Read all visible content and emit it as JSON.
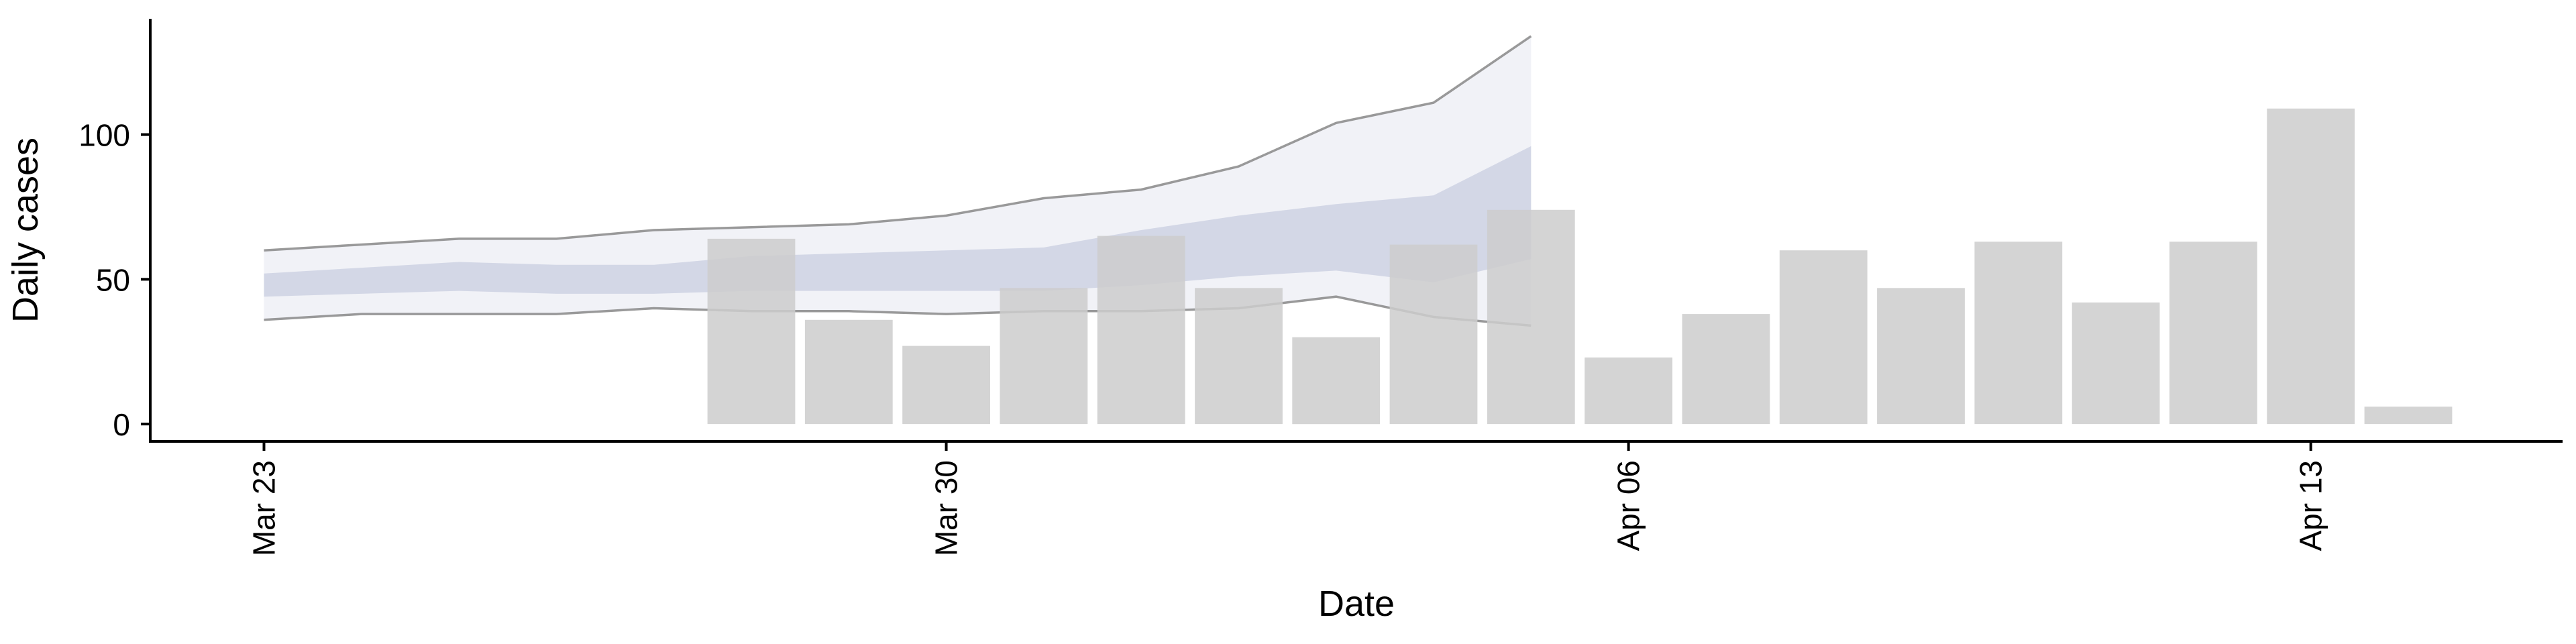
{
  "chart_data": {
    "type": "bar",
    "title": "",
    "xlabel": "Date",
    "ylabel": "Daily cases",
    "ylim": [
      -6,
      140
    ],
    "yticks": [
      0,
      50,
      100
    ],
    "xticks": [
      {
        "date": "2020-03-23",
        "label": "Mar 23"
      },
      {
        "date": "2020-03-30",
        "label": "Mar 30"
      },
      {
        "date": "2020-04-06",
        "label": "Apr 06"
      },
      {
        "date": "2020-04-13",
        "label": "Apr 13"
      }
    ],
    "xlim": [
      "2020-03-21T20:00",
      "2020-04-15T14:00"
    ],
    "grid": false,
    "bars": {
      "color": "#cccccc",
      "points": [
        {
          "date": "2020-03-28",
          "value": 64
        },
        {
          "date": "2020-03-29",
          "value": 36
        },
        {
          "date": "2020-03-30",
          "value": 27
        },
        {
          "date": "2020-03-31",
          "value": 47
        },
        {
          "date": "2020-04-01",
          "value": 65
        },
        {
          "date": "2020-04-02",
          "value": 47
        },
        {
          "date": "2020-04-03",
          "value": 30
        },
        {
          "date": "2020-04-04",
          "value": 62
        },
        {
          "date": "2020-04-05",
          "value": 74
        },
        {
          "date": "2020-04-06",
          "value": 23
        },
        {
          "date": "2020-04-07",
          "value": 38
        },
        {
          "date": "2020-04-08",
          "value": 60
        },
        {
          "date": "2020-04-09",
          "value": 47
        },
        {
          "date": "2020-04-10",
          "value": 63
        },
        {
          "date": "2020-04-11",
          "value": 42
        },
        {
          "date": "2020-04-12",
          "value": 63
        },
        {
          "date": "2020-04-13",
          "value": 109
        },
        {
          "date": "2020-04-14",
          "value": 6
        }
      ]
    },
    "forecast_bands": {
      "outer_fill": "#e6e8f0",
      "inner_fill": "#b9c1d8",
      "outer_line": "#888888",
      "dates": [
        "2020-03-23",
        "2020-03-24",
        "2020-03-25",
        "2020-03-26",
        "2020-03-27",
        "2020-03-28",
        "2020-03-29",
        "2020-03-30",
        "2020-03-31",
        "2020-04-01",
        "2020-04-02",
        "2020-04-03",
        "2020-04-04",
        "2020-04-05"
      ],
      "outer_upper": [
        60,
        62,
        64,
        64,
        67,
        68,
        69,
        72,
        78,
        81,
        89,
        104,
        111,
        134
      ],
      "outer_lower": [
        36,
        38,
        38,
        38,
        40,
        39,
        39,
        38,
        39,
        39,
        40,
        44,
        37,
        34
      ],
      "inner_upper": [
        52,
        54,
        56,
        55,
        55,
        58,
        59,
        60,
        61,
        67,
        72,
        76,
        79,
        96
      ],
      "inner_lower": [
        44,
        45,
        46,
        45,
        45,
        46,
        46,
        46,
        46,
        48,
        51,
        53,
        49,
        57
      ]
    }
  }
}
